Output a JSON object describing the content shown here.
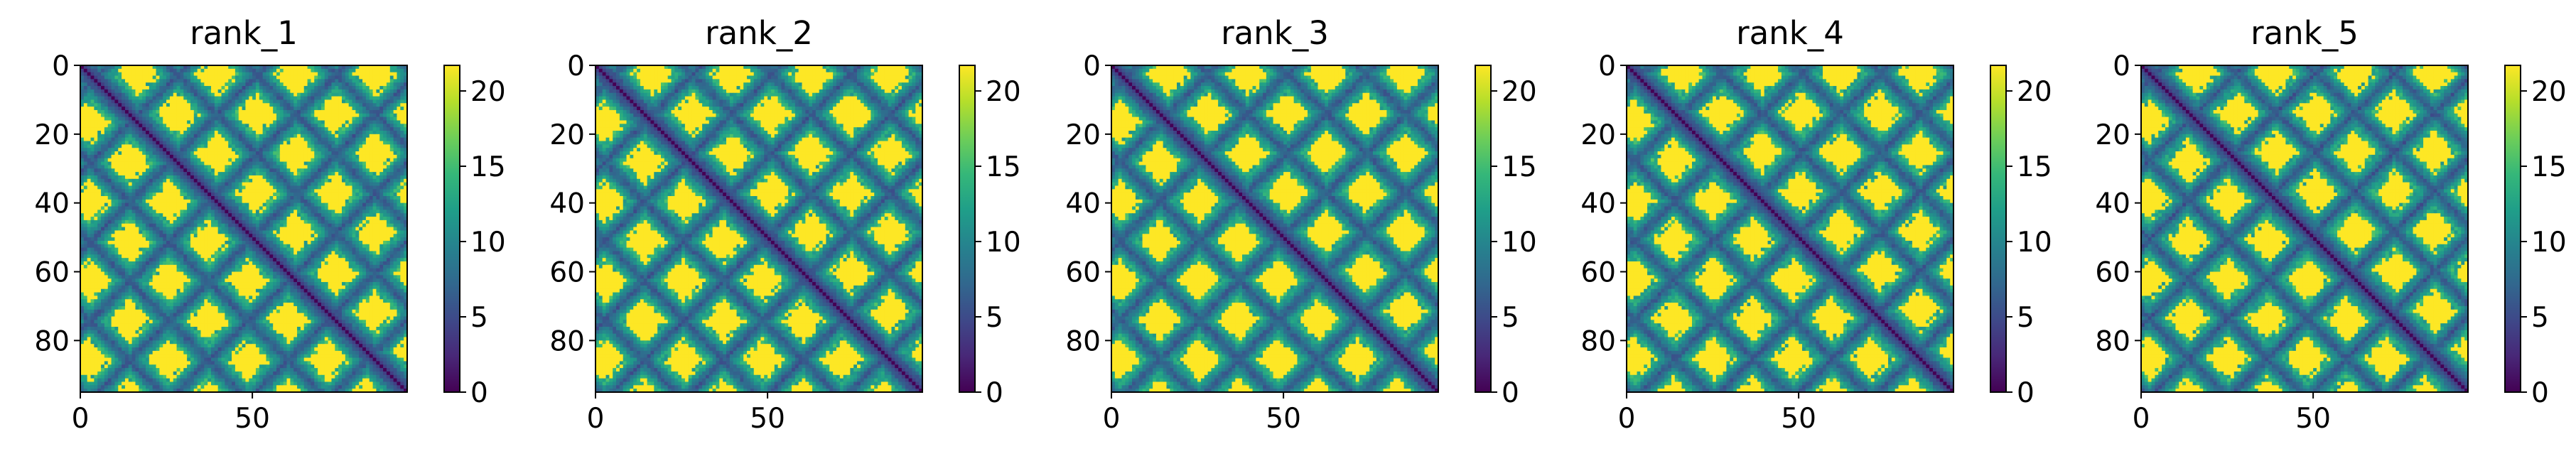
{
  "chart_data": [
    {
      "type": "heatmap",
      "title": "rank_1",
      "n": 95,
      "xticks": [
        0,
        50
      ],
      "yticks": [
        0,
        20,
        40,
        60,
        80
      ],
      "colorbar": {
        "vmin": 0,
        "vmax": 21.7,
        "ticks": [
          0,
          5,
          10,
          15,
          20
        ]
      }
    },
    {
      "type": "heatmap",
      "title": "rank_2",
      "n": 95,
      "xticks": [
        0,
        50
      ],
      "yticks": [
        0,
        20,
        40,
        60,
        80
      ],
      "colorbar": {
        "vmin": 0,
        "vmax": 21.7,
        "ticks": [
          0,
          5,
          10,
          15,
          20
        ]
      }
    },
    {
      "type": "heatmap",
      "title": "rank_3",
      "n": 95,
      "xticks": [
        0,
        50
      ],
      "yticks": [
        0,
        20,
        40,
        60,
        80
      ],
      "colorbar": {
        "vmin": 0,
        "vmax": 21.7,
        "ticks": [
          0,
          5,
          10,
          15,
          20
        ]
      }
    },
    {
      "type": "heatmap",
      "title": "rank_4",
      "n": 95,
      "xticks": [
        0,
        50
      ],
      "yticks": [
        0,
        20,
        40,
        60,
        80
      ],
      "colorbar": {
        "vmin": 0,
        "vmax": 21.7,
        "ticks": [
          0,
          5,
          10,
          15,
          20
        ]
      }
    },
    {
      "type": "heatmap",
      "title": "rank_5",
      "n": 95,
      "xticks": [
        0,
        50
      ],
      "yticks": [
        0,
        20,
        40,
        60,
        80
      ],
      "colorbar": {
        "vmin": 0,
        "vmax": 21.7,
        "ticks": [
          0,
          5,
          10,
          15,
          20
        ]
      }
    }
  ],
  "colormap": [
    "#440154",
    "#482878",
    "#3e4989",
    "#31688e",
    "#26828e",
    "#1f9e89",
    "#35b779",
    "#6ece58",
    "#b5de2b",
    "#fde725"
  ]
}
